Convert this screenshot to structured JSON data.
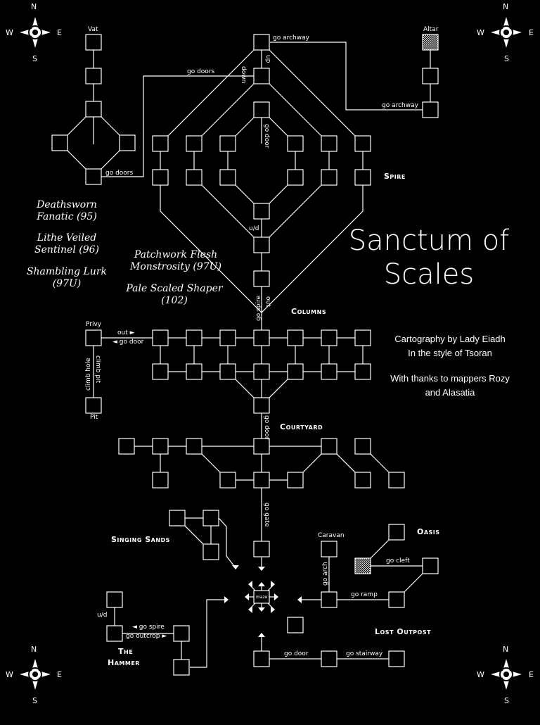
{
  "map": {
    "title_line1": "Sanctum of",
    "title_line2": "Scales",
    "credits": {
      "line1": "Cartography by Lady Eiadh",
      "line2": "In the style of Tsoran",
      "line3": "With thanks to mappers Rozy",
      "line4": "and Alasatia"
    },
    "compass": {
      "n": "N",
      "s": "S",
      "e": "E",
      "w": "W"
    },
    "areas": {
      "spire": "Spire",
      "columns": "Columns",
      "courtyard": "Courtyard",
      "singing_sands": "Singing Sands",
      "oasis": "Oasis",
      "lost_outpost": "Lost Outpost",
      "the_hammer_1": "The",
      "the_hammer_2": "Hammer"
    },
    "mobs": {
      "m1a": "Deathsworn",
      "m1b": "Fanatic (95)",
      "m2a": "Lithe Veiled",
      "m2b": "Sentinel (96)",
      "m3a": "Shambling Lurk",
      "m3b": "(97U)",
      "m4a": "Patchwork Flesh",
      "m4b": "Monstrosity (97U)",
      "m5a": "Pale Scaled Shaper",
      "m5b": "(102)"
    },
    "rooms": {
      "vat": "Vat",
      "altar": "Altar",
      "privy": "Privy",
      "pit": "Pit",
      "caravan": "Caravan",
      "maze": "maze"
    },
    "exits": {
      "go_archway_top": "go archway",
      "go_archway_right": "go archway",
      "go_doors_top": "go doors",
      "go_doors_left": "go doors",
      "down": "down",
      "up": "up",
      "go_door_spire": "go door",
      "ud_spire": "u/d",
      "go_spire": "go spire",
      "out": "out",
      "out_privy": "out ►",
      "go_door_privy": "◄ go door",
      "climb_hole": "climb hole",
      "climb_pit": "climb pit",
      "go_door_courtyard": "go door",
      "go_gate": "go gate",
      "go_arch": "go arch",
      "go_cleft": "go cleft",
      "go_ramp": "go ramp",
      "ud_hammer": "u/d",
      "go_spire_hammer": "◄ go spire",
      "go_outcrop": "go outcrop ►",
      "go_door_outpost": "go door",
      "go_stairway": "go stairway"
    }
  },
  "colors": {
    "background": "#000000",
    "line": "#ffffff",
    "special": "#c8c8c8"
  }
}
